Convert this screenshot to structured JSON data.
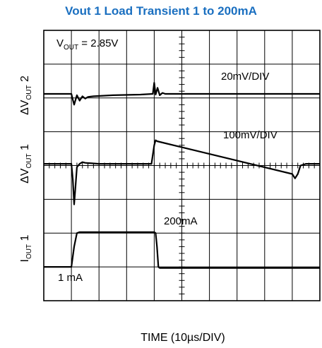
{
  "chart_data": {
    "type": "line",
    "title": "Vout 1 Load Transient 1 to 200mA",
    "xlabel": "TIME (10µs/DIV)",
    "grid": true,
    "grid_divisions": {
      "x": 10,
      "y": 8
    },
    "annotations": {
      "vout": "2.85V",
      "scale_dv2": "20mV/DIV",
      "scale_dv1": "100mV/DIV",
      "iout_high": "200mA",
      "iout_low": "1 mA"
    },
    "channel_labels": [
      {
        "name": "ΔV",
        "sub": "OUT",
        "tail": " 2"
      },
      {
        "name": "ΔV",
        "sub": "OUT",
        "tail": " 1"
      },
      {
        "name": "I",
        "sub": "OUT",
        "tail": " 1"
      }
    ],
    "series": [
      {
        "channel": "dv2",
        "units": "div",
        "x": [
          0,
          1.0,
          1.05,
          1.1,
          1.2,
          1.3,
          1.4,
          1.5,
          1.6,
          1.8,
          2.5,
          3.5,
          3.95,
          4.0,
          4.05,
          4.12,
          4.2,
          4.3,
          4.4,
          4.6,
          5.5,
          7.0,
          10.0
        ],
        "y": [
          6.12,
          6.12,
          5.95,
          5.8,
          6.08,
          5.92,
          6.05,
          5.98,
          6.03,
          6.05,
          6.08,
          6.1,
          6.12,
          6.45,
          6.1,
          6.3,
          6.08,
          6.15,
          6.12,
          6.12,
          6.12,
          6.12,
          6.12
        ]
      },
      {
        "channel": "dv1",
        "units": "div",
        "x": [
          0,
          1.0,
          1.05,
          1.1,
          1.15,
          1.2,
          1.3,
          1.4,
          1.5,
          2.0,
          3.9,
          4.0,
          4.05,
          4.1,
          4.2,
          9.0,
          9.1,
          9.2,
          9.3,
          9.5,
          10.0
        ],
        "y": [
          4.05,
          4.05,
          3.6,
          2.85,
          3.4,
          3.95,
          4.05,
          4.1,
          4.08,
          4.05,
          4.05,
          4.6,
          4.75,
          4.72,
          4.7,
          3.75,
          3.62,
          3.75,
          4.0,
          4.05,
          4.05
        ]
      },
      {
        "channel": "iout1",
        "units": "div",
        "x": [
          0,
          1.0,
          1.1,
          1.2,
          1.3,
          4.0,
          4.05,
          4.1,
          4.15,
          4.2,
          10.0
        ],
        "y": [
          1.0,
          1.0,
          1.6,
          2.0,
          2.03,
          2.03,
          2.0,
          1.6,
          1.0,
          0.97,
          0.97
        ]
      }
    ]
  }
}
